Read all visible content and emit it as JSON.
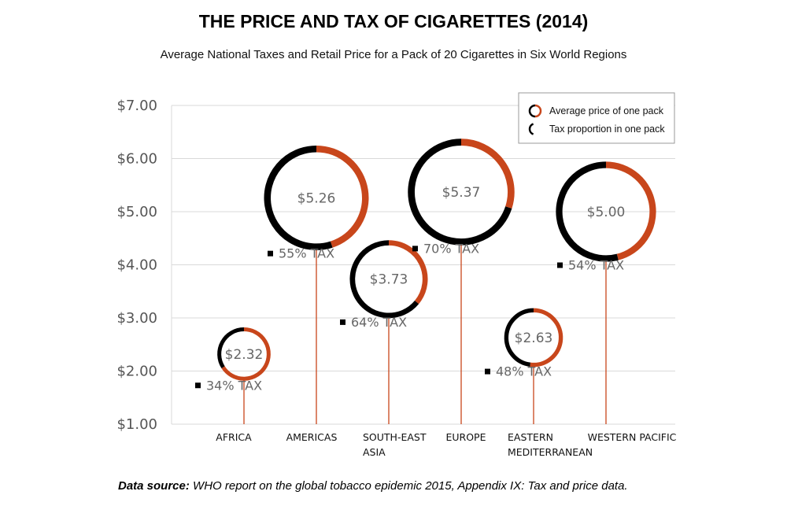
{
  "chart_data": {
    "type": "bubble-lollipop",
    "title": "THE PRICE AND TAX OF CIGARETTES (2014)",
    "subtitle": "Average National Taxes and Retail Price for a Pack of 20 Cigarettes in Six World Regions",
    "ylim": [
      1,
      7
    ],
    "yticks": [
      1,
      2,
      3,
      4,
      5,
      6,
      7
    ],
    "ytick_labels": [
      "$1.00",
      "$2.00",
      "$3.00",
      "$4.00",
      "$5.00",
      "$6.00",
      "$7.00"
    ],
    "grid": true,
    "legend_position": "top-right",
    "legend": [
      {
        "label": "Average price of one pack",
        "color": "#c8461b"
      },
      {
        "label": "Tax proportion in one pack",
        "color": "#000000"
      }
    ],
    "categories": [
      {
        "name": "AFRICA",
        "name_lines": [
          "AFRICA"
        ],
        "price": 2.32,
        "price_label": "$2.32",
        "tax_pct": 34,
        "tax_label": "34% TAX"
      },
      {
        "name": "AMERICAS",
        "name_lines": [
          "AMERICAS"
        ],
        "price": 5.26,
        "price_label": "$5.26",
        "tax_pct": 55,
        "tax_label": "55% TAX"
      },
      {
        "name": "SOUTH-EAST ASIA",
        "name_lines": [
          "SOUTH-EAST",
          "ASIA"
        ],
        "price": 3.73,
        "price_label": "$3.73",
        "tax_pct": 64,
        "tax_label": "64% TAX"
      },
      {
        "name": "EUROPE",
        "name_lines": [
          "EUROPE"
        ],
        "price": 5.37,
        "price_label": "$5.37",
        "tax_pct": 70,
        "tax_label": "70% TAX"
      },
      {
        "name": "EASTERN MEDITERRANEAN",
        "name_lines": [
          "EASTERN",
          "MEDITERRANEAN"
        ],
        "price": 2.63,
        "price_label": "$2.63",
        "tax_pct": 48,
        "tax_label": "48% TAX"
      },
      {
        "name": "WESTERN PACIFIC",
        "name_lines": [
          "WESTERN PACIFIC"
        ],
        "price": 5.0,
        "price_label": "$5.00",
        "tax_pct": 54,
        "tax_label": "54% TAX"
      }
    ],
    "colors": {
      "price": "#c8461b",
      "tax": "#000000",
      "grid": "#d9d9d9"
    }
  },
  "source": {
    "label": "Data source:",
    "text": "WHO report on the global tobacco epidemic 2015, Appendix IX: Tax and price data."
  }
}
